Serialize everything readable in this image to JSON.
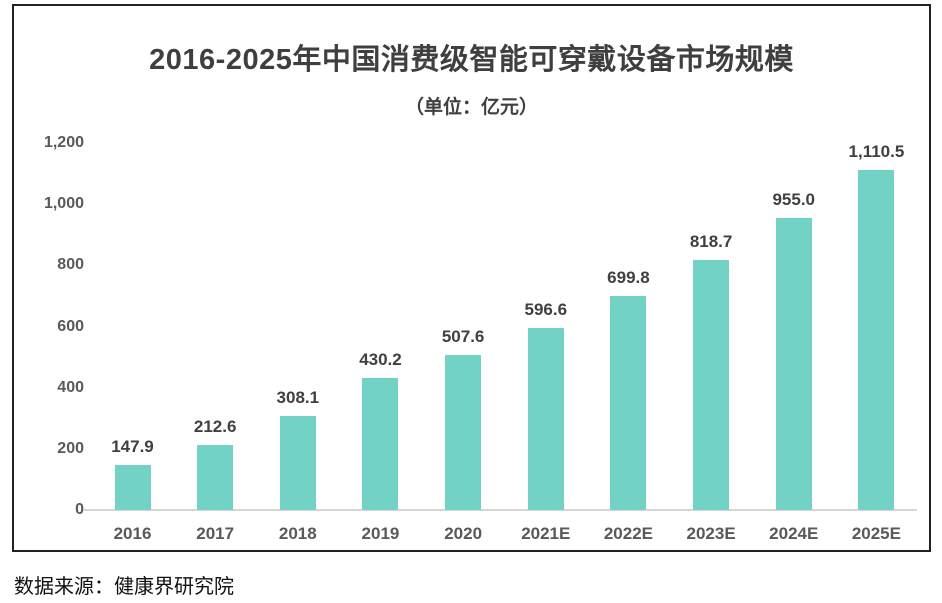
{
  "chart": {
    "title": "2016-2025年中国消费级智能可穿戴设备市场规模",
    "subtitle": "（单位：亿元）"
  },
  "chart_data": {
    "type": "bar",
    "title": "2016-2025年中国消费级智能可穿戴设备市场规模",
    "subtitle": "（单位：亿元）",
    "xlabel": "",
    "ylabel": "",
    "categories": [
      "2016",
      "2017",
      "2018",
      "2019",
      "2020",
      "2021E",
      "2022E",
      "2023E",
      "2024E",
      "2025E"
    ],
    "values": [
      147.9,
      212.6,
      308.1,
      430.2,
      507.6,
      596.6,
      699.8,
      818.7,
      955.0,
      1110.5
    ],
    "value_labels": [
      "147.9",
      "212.6",
      "308.1",
      "430.2",
      "507.6",
      "596.6",
      "699.8",
      "818.7",
      "955.0",
      "1,110.5"
    ],
    "ylim": [
      0,
      1200
    ],
    "yticks": [
      0,
      200,
      400,
      600,
      800,
      1000,
      1200
    ],
    "ytick_labels": [
      "0",
      "200",
      "400",
      "600",
      "800",
      "1,000",
      "1,200"
    ],
    "grid": false,
    "legend": false,
    "bar_color": "#71d2c5"
  },
  "source": {
    "text": "数据来源：健康界研究院"
  },
  "colors": {
    "bar": "#71d2c5",
    "title_text": "#3f3f3f",
    "axis_text": "#595959",
    "value_text": "#404040",
    "card_border": "#222222",
    "baseline": "#d6d6d6",
    "background": "#ffffff"
  }
}
